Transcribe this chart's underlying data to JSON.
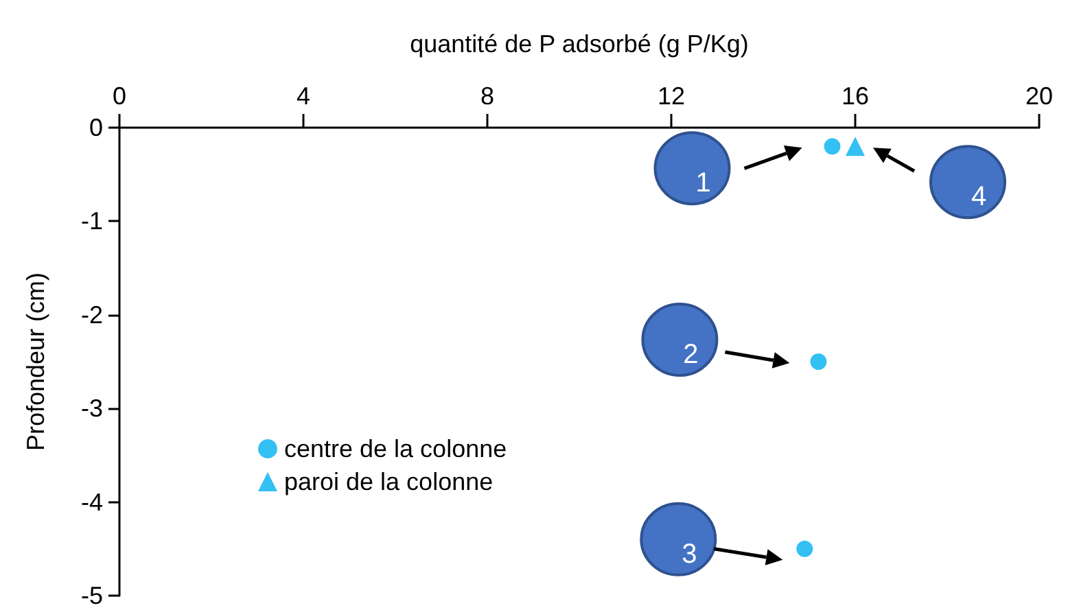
{
  "chart_data": {
    "type": "scatter",
    "xlabel": "quantité de P adsorbé (g P/Kg)",
    "ylabel": "Profondeur (cm)",
    "xlim": [
      0,
      20
    ],
    "xticks": [
      0,
      4,
      8,
      12,
      16,
      20
    ],
    "ylim": [
      -5,
      0
    ],
    "yticks": [
      0,
      -1,
      -2,
      -3,
      -4,
      -5
    ],
    "grid": false,
    "legend": "bottom left",
    "series": [
      {
        "name": "centre de la colonne",
        "color": "#00b0f0",
        "marker": "circle",
        "x": [
          15.5,
          15.2,
          14.9
        ],
        "values": [
          -0.2,
          -2.5,
          -4.5
        ]
      },
      {
        "name": "paroi de la colonne",
        "color": "#00b0f0",
        "marker": "triangle",
        "x": [
          16
        ],
        "values": [
          -0.2
        ]
      }
    ],
    "annotations": [
      "1",
      "2",
      "3",
      "4"
    ]
  }
}
